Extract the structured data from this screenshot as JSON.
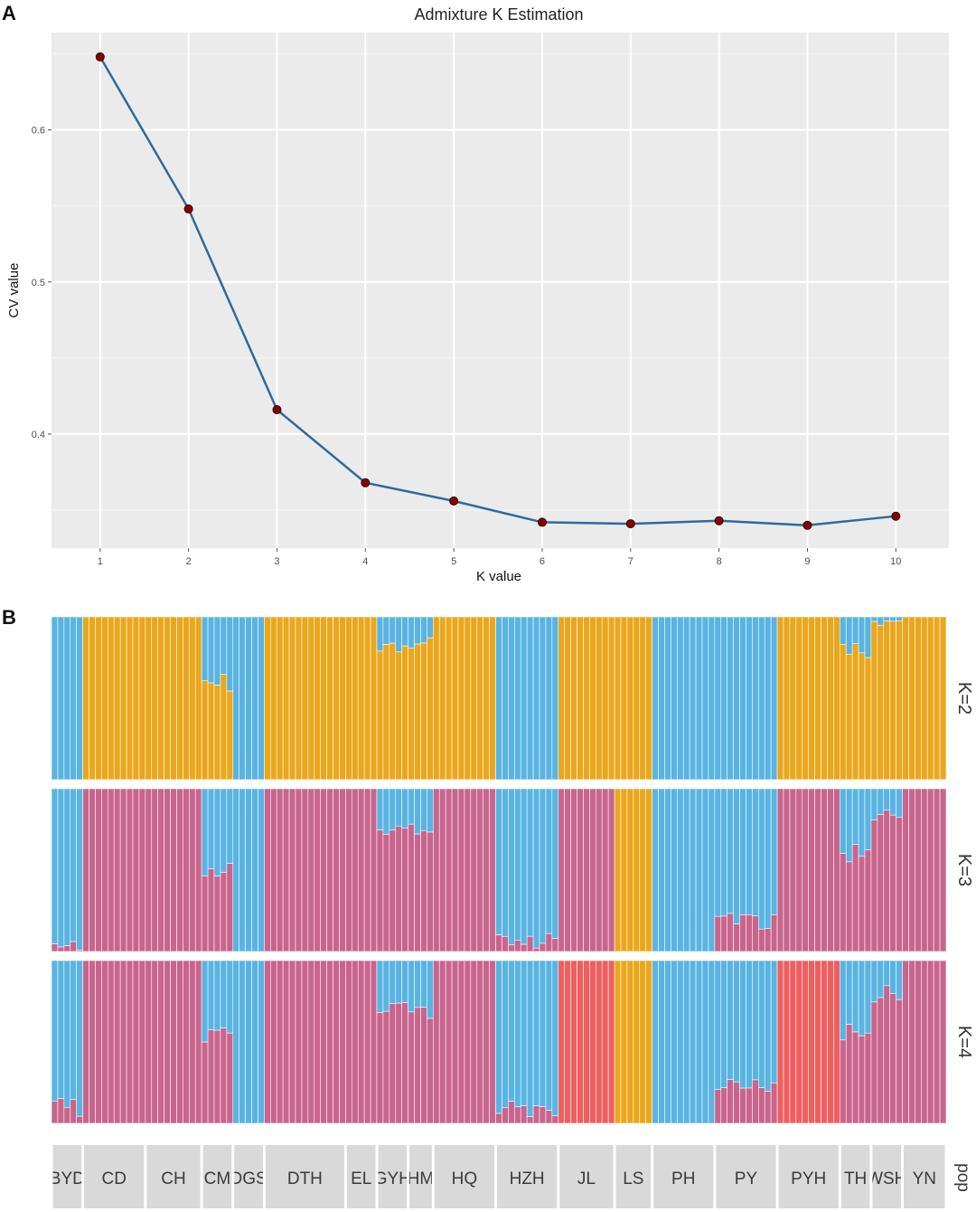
{
  "panels": {
    "a_letter": "A",
    "b_letter": "B"
  },
  "chart_data": [
    {
      "type": "line",
      "title": "Admixture K Estimation",
      "xlabel": "K value",
      "ylabel": "CV value",
      "x": [
        1,
        2,
        3,
        4,
        5,
        6,
        7,
        8,
        9,
        10
      ],
      "y": [
        0.648,
        0.548,
        0.416,
        0.368,
        0.356,
        0.342,
        0.341,
        0.343,
        0.34,
        0.346
      ],
      "xlim": [
        0.45,
        10.6
      ],
      "ylim": [
        0.325,
        0.664
      ],
      "yticks": [
        0.4,
        0.5,
        0.6
      ],
      "ytick_labels": [
        "0.4",
        "0.5",
        "0.6"
      ],
      "xtick_labels": [
        "1",
        "2",
        "3",
        "4",
        "5",
        "6",
        "7",
        "8",
        "9",
        "10"
      ],
      "grid": true,
      "line_color": "#2f6a9a",
      "point_color": "#8b0000"
    },
    {
      "type": "stacked-bar",
      "description_free": true,
      "rows": [
        {
          "label": "K=2",
          "colors": [
            "#eaa71d",
            "#59b4e2"
          ]
        },
        {
          "label": "K=3",
          "colors": [
            "#c8658d",
            "#59b4e2",
            "#eaa71d"
          ]
        },
        {
          "label": "K=4",
          "colors": [
            "#c8658d",
            "#59b4e2",
            "#eaa71d",
            "#ef5f5f"
          ]
        }
      ],
      "pop_axis_label": "pop",
      "populations": [
        {
          "name": "BYD",
          "n": 5,
          "k2": [
            "blue",
            0
          ],
          "k3": [
            "blue",
            0.02
          ],
          "k4": [
            "blue",
            0.1
          ]
        },
        {
          "name": "CD",
          "n": 10,
          "k2": [
            "orange",
            0
          ],
          "k3": [
            "pink",
            0
          ],
          "k4": [
            "pink",
            0
          ]
        },
        {
          "name": "CH",
          "n": 9,
          "k2": [
            "orange",
            0
          ],
          "k3": [
            "pink",
            0
          ],
          "k4": [
            "pink",
            0
          ]
        },
        {
          "name": "CM",
          "n": 5,
          "k2": [
            "blue",
            0.6
          ],
          "k3": [
            "blue",
            0.5
          ],
          "k4": [
            "blue",
            0.55
          ]
        },
        {
          "name": "DGS",
          "n": 5,
          "k2": [
            "blue",
            0
          ],
          "k3": [
            "blue",
            0
          ],
          "k4": [
            "blue",
            0
          ]
        },
        {
          "name": "DTH",
          "n": 13,
          "k2": [
            "orange",
            0
          ],
          "k3": [
            "pink",
            0
          ],
          "k4": [
            "pink",
            0
          ]
        },
        {
          "name": "EL",
          "n": 5,
          "k2": [
            "orange",
            0
          ],
          "k3": [
            "pink",
            0
          ],
          "k4": [
            "pink",
            0
          ]
        },
        {
          "name": "GYH",
          "n": 5,
          "k2": [
            "blue",
            0.83
          ],
          "k3": [
            "blue",
            0.75
          ],
          "k4": [
            "blue",
            0.7
          ]
        },
        {
          "name": "HM",
          "n": 4,
          "k2": [
            "blue",
            0.83
          ],
          "k3": [
            "blue",
            0.75
          ],
          "k4": [
            "blue",
            0.7
          ]
        },
        {
          "name": "HQ",
          "n": 10,
          "k2": [
            "orange",
            0
          ],
          "k3": [
            "pink",
            0
          ],
          "k4": [
            "pink",
            0
          ]
        },
        {
          "name": "HZH",
          "n": 10,
          "k2": [
            "blue",
            0
          ],
          "k3": [
            "blue",
            0.05
          ],
          "k4": [
            "blue",
            0.1
          ]
        },
        {
          "name": "JL",
          "n": 9,
          "k2": [
            "orange",
            0
          ],
          "k3": [
            "pink",
            0
          ],
          "k4": [
            "red",
            0
          ]
        },
        {
          "name": "LS",
          "n": 6,
          "k2": [
            "orange",
            0
          ],
          "k3": [
            "orange",
            0
          ],
          "k4": [
            "orange",
            0
          ]
        },
        {
          "name": "PH",
          "n": 10,
          "k2": [
            "blue",
            0
          ],
          "k3": [
            "blue",
            0
          ],
          "k4": [
            "blue",
            0
          ]
        },
        {
          "name": "PY",
          "n": 10,
          "k2": [
            "blue",
            0
          ],
          "k3": [
            "blue",
            0.18
          ],
          "k4": [
            "blue",
            0.25
          ]
        },
        {
          "name": "PYH",
          "n": 10,
          "k2": [
            "orange",
            0
          ],
          "k3": [
            "pink",
            0
          ],
          "k4": [
            "red",
            0
          ]
        },
        {
          "name": "TH",
          "n": 5,
          "k2": [
            "blue",
            0.78
          ],
          "k3": [
            "blue",
            0.6
          ],
          "k4": [
            "blue",
            0.55
          ]
        },
        {
          "name": "WSH",
          "n": 5,
          "k2": [
            "blue",
            0.98
          ],
          "k3": [
            "blue",
            0.85
          ],
          "k4": [
            "blue",
            0.8
          ]
        },
        {
          "name": "YN",
          "n": 7,
          "k2": [
            "orange",
            0
          ],
          "k3": [
            "pink",
            0
          ],
          "k4": [
            "pink",
            0
          ]
        }
      ]
    }
  ]
}
